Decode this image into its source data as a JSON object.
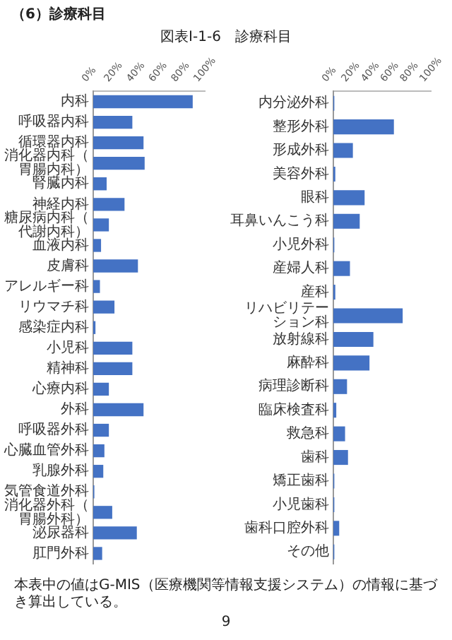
{
  "chart_data": [
    {
      "type": "bar",
      "orientation": "horizontal",
      "title": "図表Ⅰ-1-6　診療科目",
      "annotations": [
        "（6）診療科目",
        "本表中の値はG-MIS（医療機関等情報支援システム）の情報に基づき算出している。",
        "9"
      ],
      "categories": [
        "内科",
        "呼吸器内科",
        "循環器内科",
        "消化器内科（胃腸内科）",
        "腎臓内科",
        "神経内科",
        "糖尿病内科（代謝内科）",
        "血液内科",
        "皮膚科",
        "アレルギー科",
        "リウマチ科",
        "感染症内科",
        "小児科",
        "精神科",
        "心療内科",
        "外科",
        "呼吸器外科",
        "心臓血管外科",
        "乳腺外科",
        "気管食道外科",
        "消化器外科（胃腸外科）",
        "泌尿器科",
        "肛門外科"
      ],
      "values": [
        89,
        35,
        45,
        46,
        12,
        28,
        14,
        7,
        40,
        6,
        19,
        2,
        35,
        35,
        14,
        45,
        14,
        10,
        9,
        1,
        17,
        39,
        8
      ],
      "color": "#4472c4",
      "xlim": [
        0,
        100
      ],
      "xticks": [
        {
          "value": 0,
          "label": "0%"
        },
        {
          "value": 20,
          "label": "20%"
        },
        {
          "value": 40,
          "label": "40%"
        },
        {
          "value": 60,
          "label": "60%"
        },
        {
          "value": 80,
          "label": "80%"
        },
        {
          "value": 100,
          "label": "100%"
        }
      ]
    },
    {
      "type": "bar",
      "orientation": "horizontal",
      "categories": [
        "内分泌外科",
        "整形外科",
        "形成外科",
        "美容外科",
        "眼科",
        "耳鼻いんこう科",
        "小児外科",
        "産婦人科",
        "産科",
        "リハビリテーション科",
        "放射線科",
        "麻酔科",
        "病理診断科",
        "臨床検査科",
        "救急科",
        "歯科",
        "矯正歯科",
        "小児歯科",
        "歯科口腔外科",
        "その他"
      ],
      "values": [
        1,
        62,
        20,
        2,
        32,
        27,
        1,
        17,
        2,
        71,
        41,
        37,
        14,
        3,
        12,
        15,
        1,
        1,
        6,
        1
      ],
      "color": "#4472c4",
      "xlim": [
        0,
        100
      ],
      "xticks": [
        {
          "value": 0,
          "label": "0%"
        },
        {
          "value": 20,
          "label": "20%"
        },
        {
          "value": 40,
          "label": "40%"
        },
        {
          "value": 60,
          "label": "60%"
        },
        {
          "value": 80,
          "label": "80%"
        },
        {
          "value": 100,
          "label": "100%"
        }
      ]
    }
  ]
}
